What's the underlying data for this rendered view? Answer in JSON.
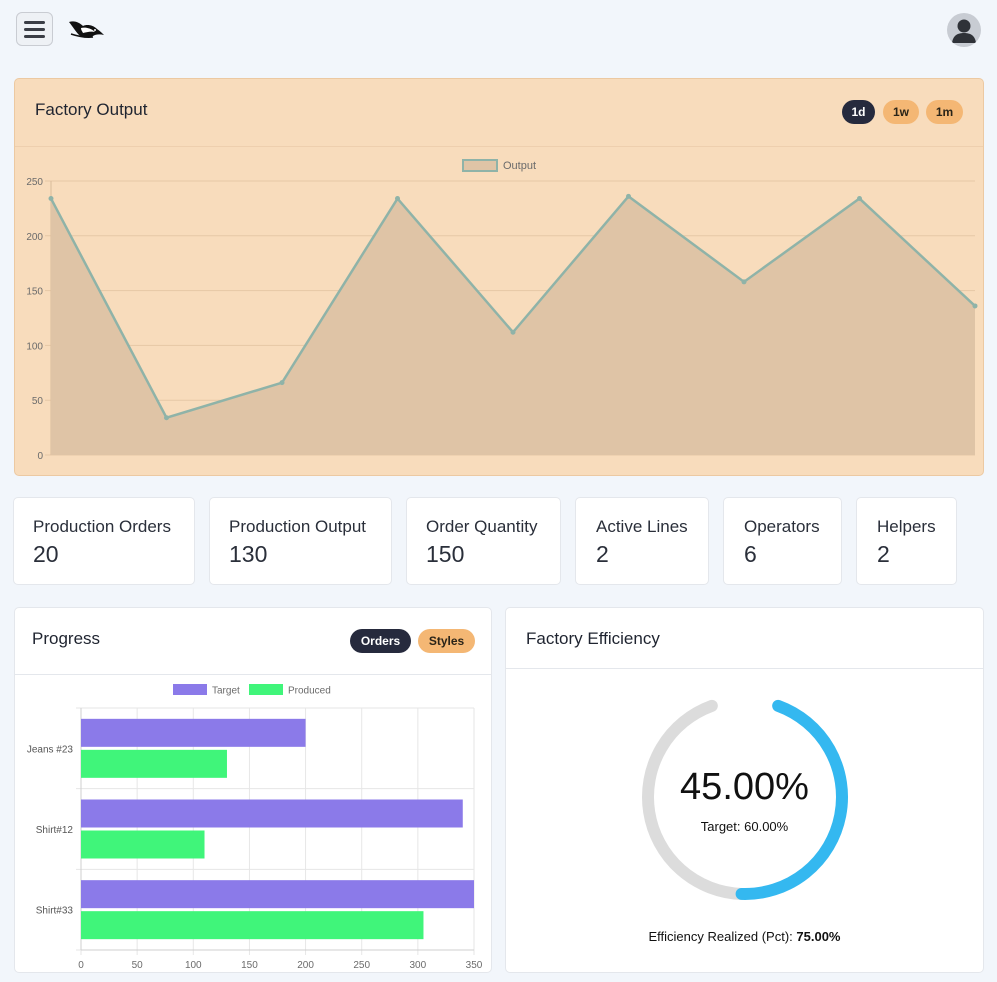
{
  "colors": {
    "background": "#f2f6fb",
    "output_card": "#f8dcbc",
    "pill_dark": "#262a3d",
    "pill_light": "#f4b774",
    "line": "#8fb3a8",
    "area": "#dfc4a6",
    "target": "#8b7ae9",
    "produced": "#40f57a",
    "gauge_track": "#dcdcdc",
    "gauge_fill": "#34b8f0"
  },
  "header": {
    "menu_icon": "hamburger-icon",
    "logo_icon": "bird-logo-icon",
    "profile_icon": "user-avatar-icon"
  },
  "output": {
    "title": "Factory Output",
    "ranges": [
      "1d",
      "1w",
      "1m"
    ],
    "active_range": "1d"
  },
  "stats": [
    {
      "label": "Production Orders",
      "value": "20"
    },
    {
      "label": "Production Output",
      "value": "130"
    },
    {
      "label": "Order Quantity",
      "value": "150"
    },
    {
      "label": "Active Lines",
      "value": "2"
    },
    {
      "label": "Operators",
      "value": "6"
    },
    {
      "label": "Helpers",
      "value": "2"
    }
  ],
  "progress": {
    "title": "Progress",
    "tabs": [
      "Orders",
      "Styles"
    ],
    "active_tab": "Orders"
  },
  "efficiency": {
    "title": "Factory Efficiency",
    "percent_text": "45.00%",
    "percent": 45,
    "target_text": "Target: 60.00%",
    "realized_label": "Efficiency Realized (Pct):",
    "realized_value": "75.00%"
  },
  "chart_data": [
    {
      "type": "area",
      "series": [
        {
          "name": "Output",
          "values": [
            234,
            34,
            66,
            234,
            112,
            236,
            158,
            234,
            136
          ]
        }
      ],
      "x": [
        0,
        1,
        2,
        3,
        4,
        5,
        6,
        7,
        8
      ],
      "ylim": [
        0,
        250
      ],
      "yticks": [
        0,
        50,
        100,
        150,
        200,
        250
      ],
      "grid": true,
      "legend": "top-center"
    },
    {
      "type": "bar",
      "orientation": "horizontal",
      "categories": [
        "Jeans #23",
        "Shirt#12",
        "Shirt#33"
      ],
      "series": [
        {
          "name": "Target",
          "values": [
            200,
            340,
            350
          ]
        },
        {
          "name": "Produced",
          "values": [
            130,
            110,
            305
          ]
        }
      ],
      "xlim": [
        0,
        350
      ],
      "xticks": [
        0,
        50,
        100,
        150,
        200,
        250,
        300,
        350
      ],
      "grid": true,
      "legend": "top-center"
    }
  ]
}
